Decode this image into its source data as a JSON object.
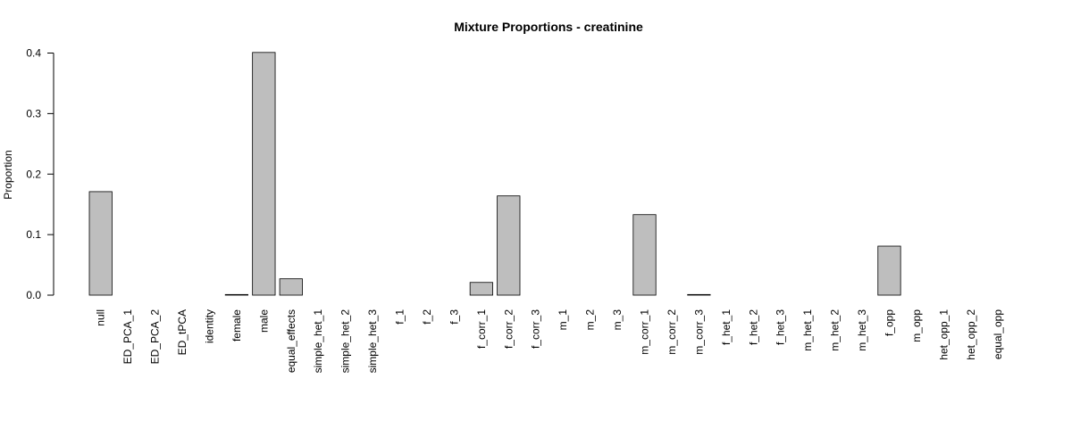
{
  "chart_data": {
    "type": "bar",
    "title": "Mixture Proportions - creatinine",
    "xlabel": "",
    "ylabel": "Proportion",
    "ylim": [
      0,
      0.4
    ],
    "yticks": [
      "0.0",
      "0.1",
      "0.2",
      "0.3",
      "0.4"
    ],
    "grid": false,
    "bar_color": "#bebebe",
    "categories": [
      "null",
      "ED_PCA_1",
      "ED_PCA_2",
      "ED_tPCA",
      "identity",
      "female",
      "male",
      "equal_effects",
      "simple_het_1",
      "simple_het_2",
      "simple_het_3",
      "f_1",
      "f_2",
      "f_3",
      "f_corr_1",
      "f_corr_2",
      "f_corr_3",
      "m_1",
      "m_2",
      "m_3",
      "m_corr_1",
      "m_corr_2",
      "m_corr_3",
      "f_het_1",
      "f_het_2",
      "f_het_3",
      "m_het_1",
      "m_het_2",
      "m_het_3",
      "f_opp",
      "m_opp",
      "het_opp_1",
      "het_opp_2",
      "equal_opp"
    ],
    "values": [
      0.171,
      0,
      0,
      0,
      0,
      0.001,
      0.401,
      0.027,
      0,
      0,
      0,
      0,
      0,
      0,
      0.021,
      0.164,
      0,
      0,
      0,
      0,
      0.133,
      0,
      0.001,
      0,
      0,
      0,
      0,
      0,
      0,
      0.081,
      0,
      0,
      0,
      0
    ]
  }
}
